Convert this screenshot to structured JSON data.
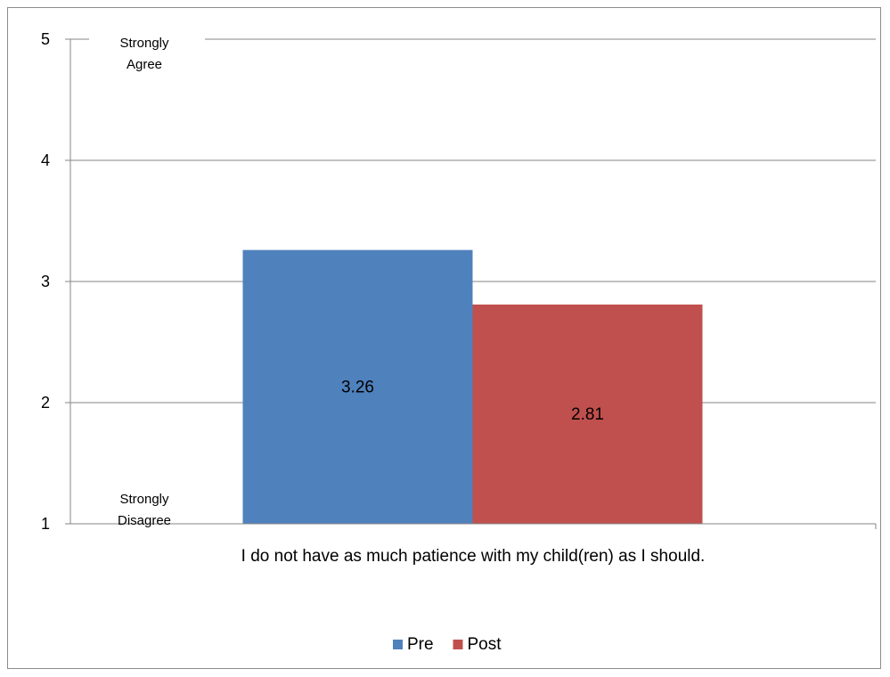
{
  "chart_data": {
    "type": "bar",
    "categories": [
      "I do not have as much patience with my child(ren) as I should."
    ],
    "series": [
      {
        "name": "Pre",
        "values": [
          3.26
        ],
        "color": "#4F81BD"
      },
      {
        "name": "Post",
        "values": [
          2.81
        ],
        "color": "#C0504D"
      }
    ],
    "ylim": [
      1,
      5
    ],
    "yticks": [
      1,
      2,
      3,
      4,
      5
    ],
    "annotations": {
      "top": [
        "Strongly",
        "Agree"
      ],
      "bottom": [
        "Strongly",
        "Disagree"
      ]
    },
    "grid": true,
    "legend": "bottom"
  }
}
